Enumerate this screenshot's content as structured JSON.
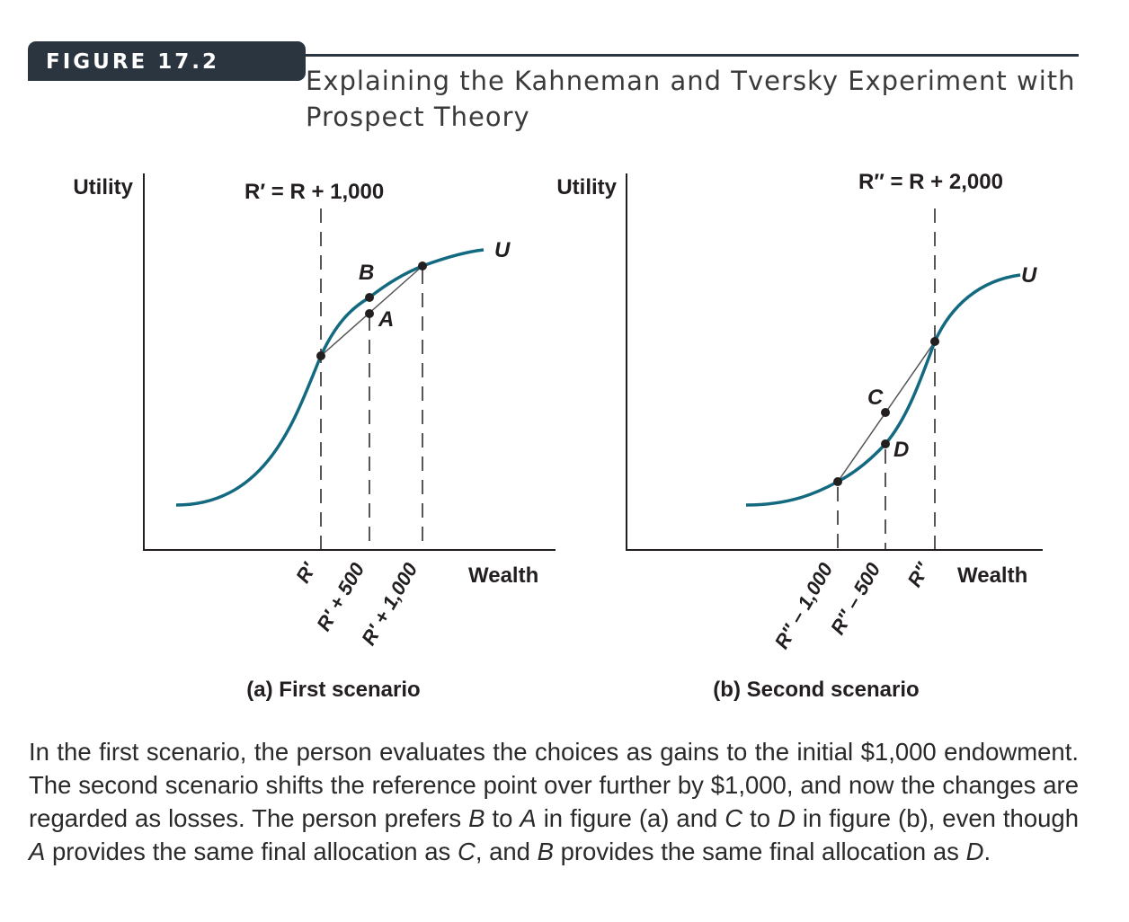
{
  "figure": {
    "label": "FIGURE 17.2",
    "title": "Explaining the Kahneman and Tversky Experiment with Prospect Theory"
  },
  "panel_a": {
    "y_axis_label": "Utility",
    "x_axis_label": "Wealth",
    "reference_label": "R′ = R + 1,000",
    "curve_label": "U",
    "point_b": "B",
    "point_a": "A",
    "tick_1": "R′",
    "tick_2": "R′ + 500",
    "tick_3": "R′ + 1,000",
    "subtitle": "(a) First scenario"
  },
  "panel_b": {
    "y_axis_label": "Utility",
    "x_axis_label": "Wealth",
    "reference_label": "R″ = R + 2,000",
    "curve_label": "U",
    "point_c": "C",
    "point_d": "D",
    "tick_1": "R″ – 1,000",
    "tick_2": "R″ – 500",
    "tick_3": "R″",
    "subtitle": "(b) Second scenario"
  },
  "caption": {
    "part1": "In the first scenario, the person evaluates the choices as gains to the initial $1,000 endowment. The second scenario shifts the reference point over further by $1,000, and now the changes are regarded as losses. The person prefers ",
    "b1": "B",
    "part2": " to ",
    "a1": "A",
    "part3": " in figure (a) and ",
    "c1": "C",
    "part4": " to ",
    "d1": "D",
    "part5": " in figure (b), even though ",
    "a2": "A",
    "part6": " provides the same final allocation as ",
    "c2": "C",
    "part7": ", and ",
    "b2": "B",
    "part8": " provides the same final allocation as ",
    "d2": "D",
    "part9": "."
  },
  "colors": {
    "curve": "#136a80",
    "axis": "#231f20",
    "header": "#2b3540"
  }
}
